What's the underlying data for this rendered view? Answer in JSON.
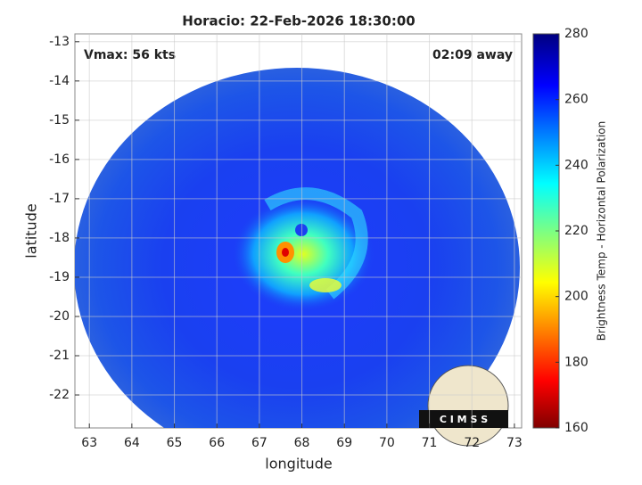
{
  "chart_data": {
    "type": "image",
    "title": "Horacio: 22-Feb-2026 18:30:00",
    "xlabel": "longitude",
    "ylabel": "latitude",
    "annotations": [
      "Vmax: 56 kts",
      "02:09 away"
    ],
    "logo": "C I M S S",
    "xlim": [
      62.66,
      73.17
    ],
    "xticks": [
      63,
      64,
      65,
      66,
      67,
      68,
      69,
      70,
      71,
      72,
      73
    ],
    "ylim": [
      -22.84,
      -12.8
    ],
    "yticks": [
      -22,
      -21,
      -20,
      -19,
      -18,
      -17,
      -16,
      -15,
      -14,
      -13
    ],
    "grid": true,
    "colorbar": {
      "label": "Brightness Temp - Horizontal Polarization",
      "clim": [
        160,
        280
      ],
      "ticks": [
        160,
        180,
        200,
        220,
        240,
        260,
        280
      ],
      "colormap": "jet"
    }
  }
}
